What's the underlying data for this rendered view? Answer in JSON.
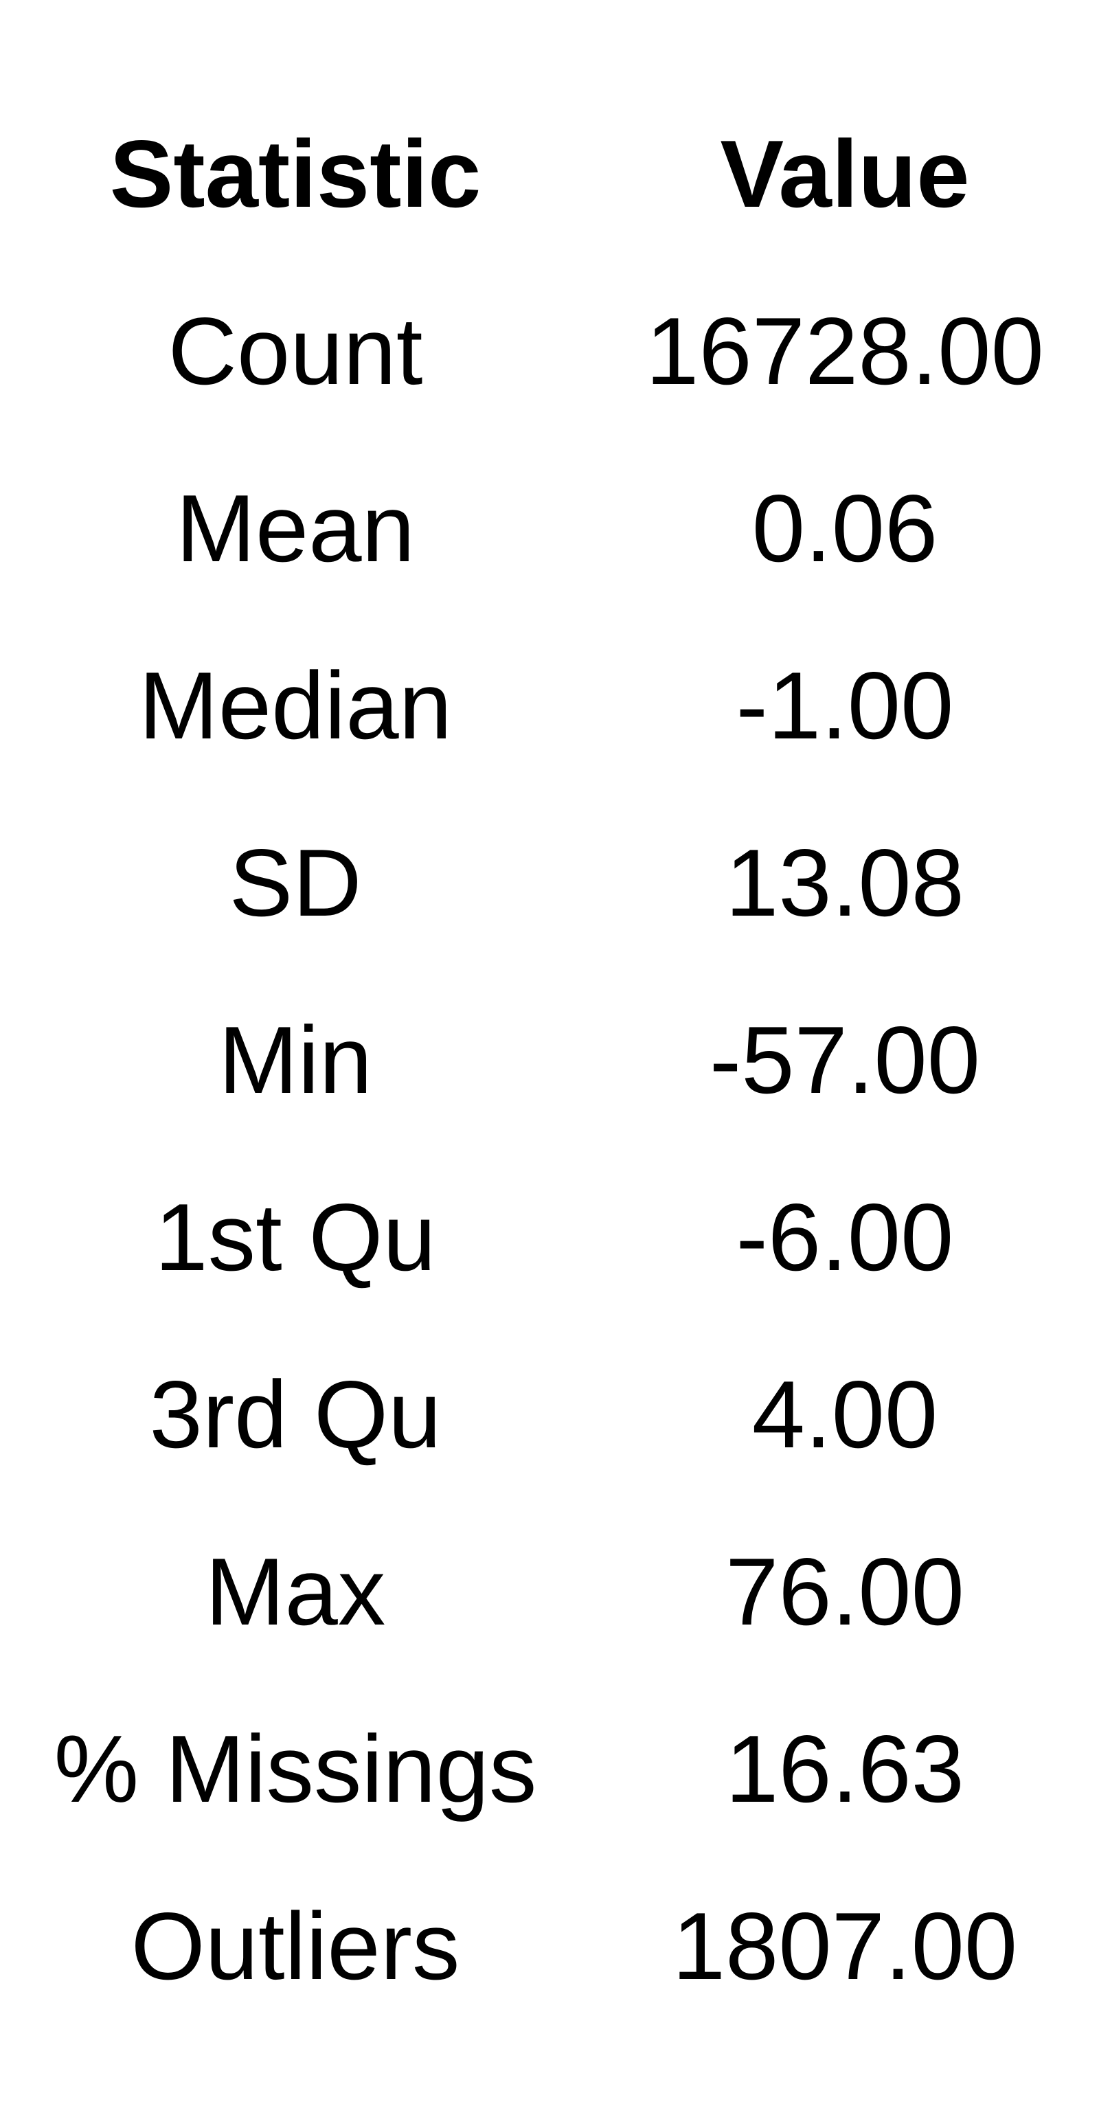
{
  "chart_data": {
    "type": "table",
    "columns": [
      "Statistic",
      "Value"
    ],
    "rows": [
      {
        "statistic": "Count",
        "value": "16728.00"
      },
      {
        "statistic": "Mean",
        "value": "0.06"
      },
      {
        "statistic": "Median",
        "value": "-1.00"
      },
      {
        "statistic": "SD",
        "value": "13.08"
      },
      {
        "statistic": "Min",
        "value": "-57.00"
      },
      {
        "statistic": "1st Qu",
        "value": "-6.00"
      },
      {
        "statistic": "3rd Qu",
        "value": "4.00"
      },
      {
        "statistic": "Max",
        "value": "76.00"
      },
      {
        "statistic": "% Missings",
        "value": "16.63"
      },
      {
        "statistic": "Outliers",
        "value": "1807.00"
      }
    ]
  }
}
